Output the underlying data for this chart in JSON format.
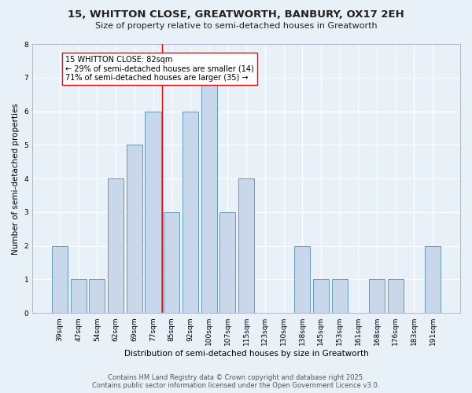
{
  "title_line1": "15, WHITTON CLOSE, GREATWORTH, BANBURY, OX17 2EH",
  "title_line2": "Size of property relative to semi-detached houses in Greatworth",
  "xlabel": "Distribution of semi-detached houses by size in Greatworth",
  "ylabel": "Number of semi-detached properties",
  "categories": [
    "39sqm",
    "47sqm",
    "54sqm",
    "62sqm",
    "69sqm",
    "77sqm",
    "85sqm",
    "92sqm",
    "100sqm",
    "107sqm",
    "115sqm",
    "123sqm",
    "130sqm",
    "138sqm",
    "145sqm",
    "153sqm",
    "161sqm",
    "168sqm",
    "176sqm",
    "183sqm",
    "191sqm"
  ],
  "values": [
    2,
    1,
    1,
    4,
    5,
    6,
    3,
    6,
    7,
    3,
    4,
    0,
    0,
    2,
    1,
    1,
    0,
    1,
    1,
    0,
    2
  ],
  "bar_color": "#c8d8ea",
  "bar_edge_color": "#6699bb",
  "red_line_x": 5.5,
  "annotation_text": "15 WHITTON CLOSE: 82sqm\n← 29% of semi-detached houses are smaller (14)\n71% of semi-detached houses are larger (35) →",
  "ylim": [
    0,
    8
  ],
  "yticks": [
    0,
    1,
    2,
    3,
    4,
    5,
    6,
    7,
    8
  ],
  "background_color": "#e8f0f8",
  "grid_color": "#ffffff",
  "footer_line1": "Contains HM Land Registry data © Crown copyright and database right 2025.",
  "footer_line2": "Contains public sector information licensed under the Open Government Licence v3.0."
}
